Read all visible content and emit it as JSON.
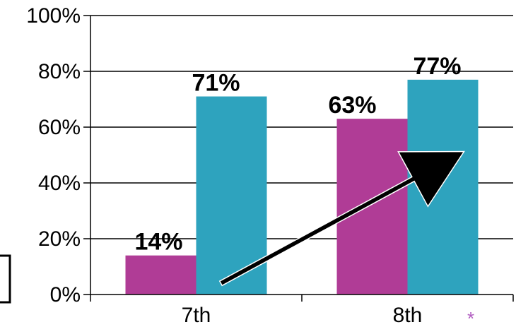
{
  "chart_data": {
    "type": "bar",
    "categories": [
      "7th",
      "8th"
    ],
    "series": [
      {
        "color": "#b03c96",
        "values": [
          14,
          63
        ]
      },
      {
        "color": "#2ea3be",
        "values": [
          71,
          77
        ]
      }
    ],
    "data_labels": [
      [
        "14%",
        "63%"
      ],
      [
        "71%",
        "77%"
      ]
    ],
    "y_ticks": [
      "0%",
      "20%",
      "40%",
      "60%",
      "80%",
      "100%"
    ],
    "ylim": [
      0,
      100
    ],
    "grid": true,
    "title": "",
    "xlabel": "",
    "ylabel": "",
    "annotations": {
      "arrow": {
        "from": [
          "7th",
          4
        ],
        "to": [
          "8th",
          50
        ],
        "color": "#000000"
      },
      "footnote_mark": "*",
      "footnote_color": "#b05cc0"
    }
  }
}
